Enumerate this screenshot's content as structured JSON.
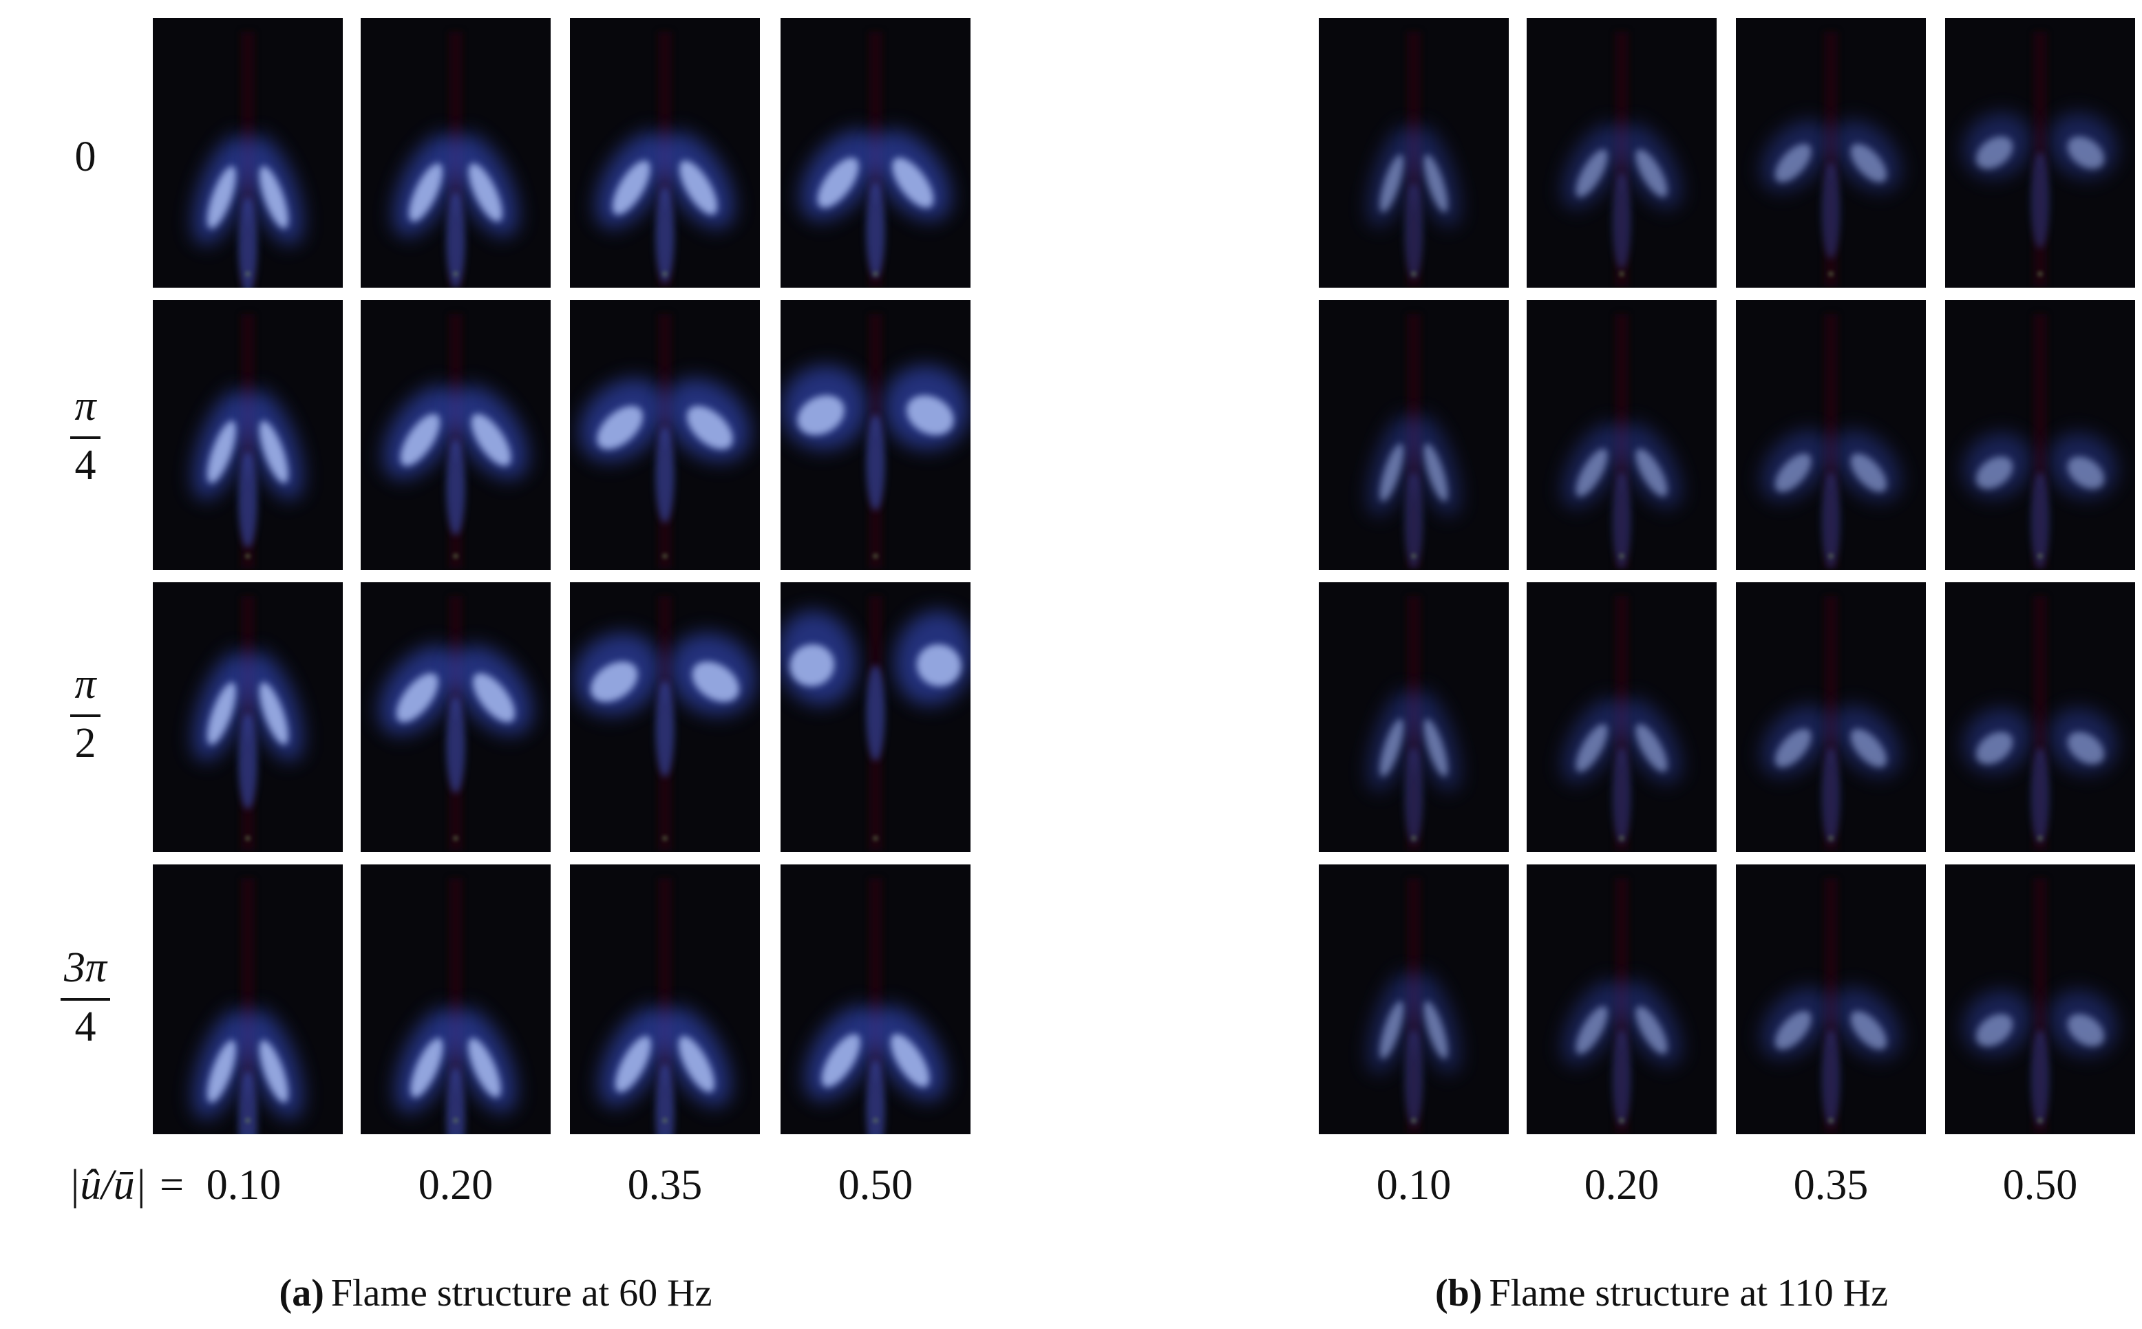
{
  "figure": {
    "panels": [
      {
        "row_labels": [
          {
            "text": "0"
          },
          {
            "numerator": "π",
            "denominator": "4"
          },
          {
            "numerator": "π",
            "denominator": "2"
          },
          {
            "numerator": "3π",
            "denominator": "4"
          }
        ],
        "amplitude_label": "|û/ū| =",
        "column_labels": [
          "0.10",
          "0.20",
          "0.35",
          "0.50"
        ],
        "caption_label": "(a)",
        "caption": "Flame structure at 60 Hz"
      },
      {
        "column_labels": [
          "0.10",
          "0.20",
          "0.35",
          "0.50"
        ],
        "caption_label": "(b)",
        "caption": "Flame structure at 110 Hz"
      }
    ]
  }
}
